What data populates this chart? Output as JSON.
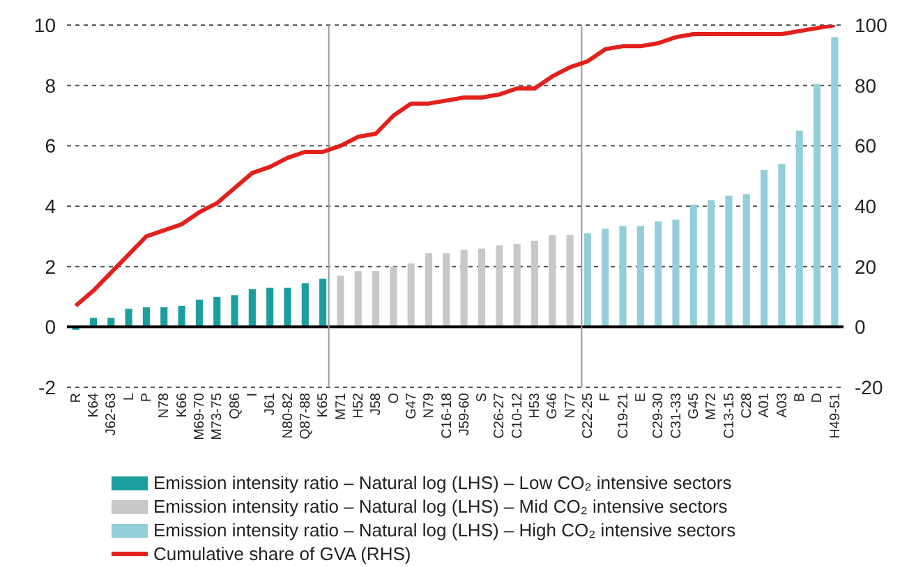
{
  "chart_data": {
    "type": "bar",
    "stacked": true,
    "categories": [
      "R",
      "K64",
      "J62-63",
      "L",
      "P",
      "N78",
      "K66",
      "M69-70",
      "M73-75",
      "Q86",
      "I",
      "J61",
      "N80-82",
      "Q87-88",
      "K65",
      "M71",
      "H52",
      "J58",
      "O",
      "G47",
      "N79",
      "C16-18",
      "J59-60",
      "S",
      "C26-27",
      "C10-12",
      "H53",
      "G46",
      "N77",
      "C22-25",
      "F",
      "C19-21",
      "E",
      "C29-30",
      "C31-33",
      "G45",
      "M72",
      "C13-15",
      "C28",
      "A01",
      "A03",
      "B",
      "D",
      "H49-51"
    ],
    "series": [
      {
        "name": "Emission intensity ratio – Natural log (LHS) – Low CO₂ intensive sectors",
        "color": "#1a9e9e",
        "values": [
          -0.1,
          0.3,
          0.3,
          0.6,
          0.65,
          0.65,
          0.7,
          0.9,
          1.0,
          1.05,
          1.25,
          1.3,
          1.3,
          1.45,
          1.6,
          null,
          null,
          null,
          null,
          null,
          null,
          null,
          null,
          null,
          null,
          null,
          null,
          null,
          null,
          null,
          null,
          null,
          null,
          null,
          null,
          null,
          null,
          null,
          null,
          null,
          null,
          null,
          null,
          null
        ]
      },
      {
        "name": "Emission intensity ratio – Natural log (LHS) – Mid CO₂ intensive sectors",
        "color": "#c8c8c8",
        "values": [
          null,
          null,
          null,
          null,
          null,
          null,
          null,
          null,
          null,
          null,
          null,
          null,
          null,
          null,
          null,
          1.7,
          1.85,
          1.85,
          2.0,
          2.1,
          2.45,
          2.45,
          2.55,
          2.6,
          2.7,
          2.75,
          2.85,
          3.05,
          3.05,
          null,
          null,
          null,
          null,
          null,
          null,
          null,
          null,
          null,
          null,
          null,
          null,
          null,
          null,
          null
        ]
      },
      {
        "name": "Emission intensity ratio – Natural log (LHS) – High CO₂ intensive sectors",
        "color": "#92cfd8",
        "values": [
          null,
          null,
          null,
          null,
          null,
          null,
          null,
          null,
          null,
          null,
          null,
          null,
          null,
          null,
          null,
          null,
          null,
          null,
          null,
          null,
          null,
          null,
          null,
          null,
          null,
          null,
          null,
          null,
          null,
          3.1,
          3.25,
          3.35,
          3.35,
          3.5,
          3.55,
          4.05,
          4.2,
          4.35,
          4.4,
          5.2,
          5.4,
          6.5,
          8.05,
          9.6
        ]
      },
      {
        "name": "Cumulative share of GVA (RHS)",
        "type": "line",
        "axis": "y2",
        "color": "#e3201c",
        "values": [
          7,
          12,
          18,
          24,
          30,
          32,
          34,
          38,
          41,
          46,
          51,
          53,
          56,
          58,
          58,
          60,
          63,
          64,
          70,
          74,
          74,
          75,
          76,
          76,
          77,
          79,
          79,
          83,
          86,
          88,
          92,
          93,
          93,
          94,
          96,
          97,
          97,
          97,
          97,
          97,
          97,
          98,
          99,
          100
        ]
      }
    ],
    "ylim": [
      -2,
      10
    ],
    "yticks": [
      -2,
      0,
      2,
      4,
      6,
      8,
      10
    ],
    "y2lim": [
      -20,
      100
    ],
    "y2ticks": [
      -20,
      0,
      20,
      40,
      60,
      80,
      100
    ],
    "grid": "y",
    "legend": "bottom",
    "line_style": "solid",
    "marker": "none"
  }
}
